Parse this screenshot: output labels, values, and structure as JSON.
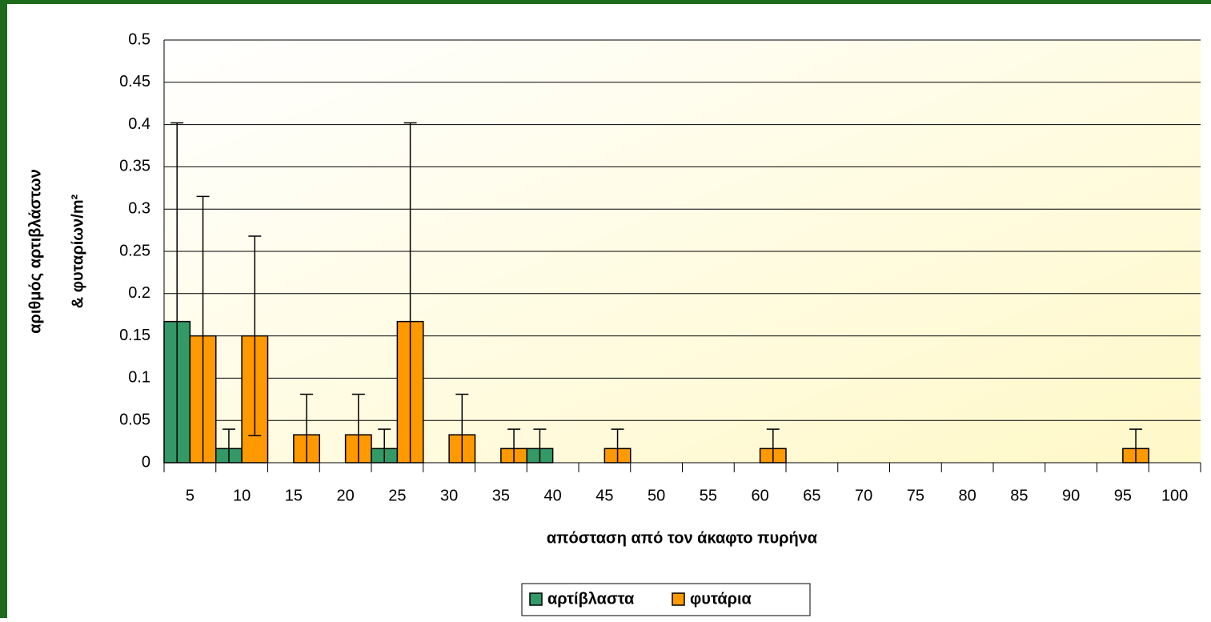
{
  "chart_data": {
    "type": "bar",
    "xlabel": "απόσταση από τον άκαφτο πυρήνα",
    "ylabel": [
      "αριθμός αρτιβλάστων",
      "& φυταρίων/m²"
    ],
    "categories": [
      "5",
      "10",
      "15",
      "20",
      "25",
      "30",
      "35",
      "40",
      "45",
      "50",
      "55",
      "60",
      "65",
      "70",
      "75",
      "80",
      "85",
      "90",
      "95",
      "100"
    ],
    "series": [
      {
        "name": "αρτίβλαστα",
        "color": "#339966",
        "values": [
          0.167,
          0.0167,
          0,
          0,
          0.0167,
          0,
          0,
          0.0167,
          0,
          0,
          0,
          0,
          0,
          0,
          0,
          0,
          0,
          0,
          0,
          0
        ],
        "errors": [
          0.235,
          0.023,
          0,
          0,
          0.023,
          0,
          0,
          0.023,
          0,
          0,
          0,
          0,
          0,
          0,
          0,
          0,
          0,
          0,
          0,
          0
        ]
      },
      {
        "name": "φυτάρια",
        "color": "#ff9900",
        "values": [
          0.15,
          0.15,
          0.033,
          0.033,
          0.167,
          0.033,
          0.0167,
          0,
          0.0167,
          0,
          0,
          0.0167,
          0,
          0,
          0,
          0,
          0,
          0,
          0.0167,
          0
        ],
        "errors": [
          0.165,
          0.118,
          0.048,
          0.048,
          0.235,
          0.048,
          0.023,
          0,
          0.023,
          0,
          0,
          0.023,
          0,
          0,
          0,
          0,
          0,
          0,
          0.023,
          0
        ]
      }
    ],
    "ylim": [
      0,
      0.5
    ],
    "yticks": [
      0,
      0.05,
      0.1,
      0.15,
      0.2,
      0.25,
      0.3,
      0.35,
      0.4,
      0.45,
      0.5
    ],
    "grid": true,
    "legend": "bottom"
  }
}
